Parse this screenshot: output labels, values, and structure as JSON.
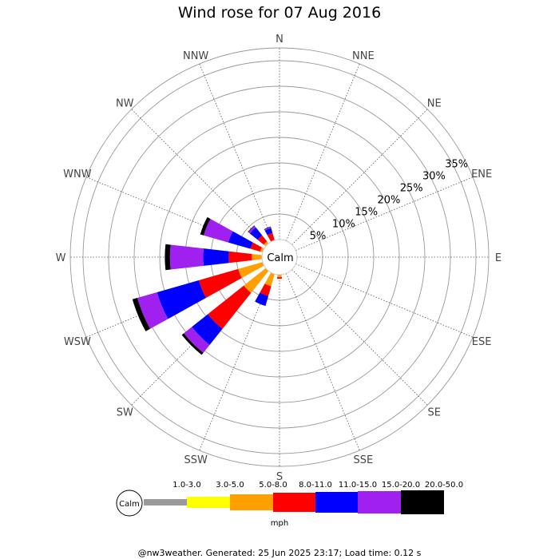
{
  "chart_data": {
    "type": "wind-rose",
    "title": "Wind rose for 07 Aug 2016",
    "directions": [
      "N",
      "NNE",
      "NE",
      "ENE",
      "E",
      "ESE",
      "SE",
      "SSE",
      "S",
      "SSW",
      "SW",
      "WSW",
      "W",
      "WNW",
      "NW",
      "NNW"
    ],
    "ring_labels": [
      "5%",
      "10%",
      "15%",
      "20%",
      "25%",
      "30%",
      "35%"
    ],
    "rmax_percent": 37.5,
    "calm_label": "Calm",
    "unit_label": "mph",
    "speed_bins": [
      {
        "label": "1.0-3.0",
        "color": "#999999"
      },
      {
        "label": "3.0-5.0",
        "color": "#ffff00"
      },
      {
        "label": "5.0-8.0",
        "color": "#ffa000"
      },
      {
        "label": "8.0-11.0",
        "color": "#ff0000"
      },
      {
        "label": "11.0-15.0",
        "color": "#0000ff"
      },
      {
        "label": "15.0-20.0",
        "color": "#a020f0"
      },
      {
        "label": "20.0-50.0",
        "color": "#000000"
      }
    ],
    "series": [
      {
        "direction": "N",
        "cumulative_percent": [
          0,
          0,
          0,
          0,
          0,
          0,
          0
        ]
      },
      {
        "direction": "NNE",
        "cumulative_percent": [
          0,
          0,
          0,
          0,
          0,
          0,
          0
        ]
      },
      {
        "direction": "NE",
        "cumulative_percent": [
          0,
          0,
          0,
          0,
          0,
          0,
          0
        ]
      },
      {
        "direction": "ENE",
        "cumulative_percent": [
          0,
          0,
          0,
          0,
          0,
          0,
          0
        ]
      },
      {
        "direction": "E",
        "cumulative_percent": [
          0,
          0,
          0,
          0,
          0,
          0,
          0
        ]
      },
      {
        "direction": "ESE",
        "cumulative_percent": [
          0,
          0,
          0,
          0,
          0,
          0,
          0
        ]
      },
      {
        "direction": "SE",
        "cumulative_percent": [
          0,
          0,
          0,
          0,
          0,
          0,
          0
        ]
      },
      {
        "direction": "SSE",
        "cumulative_percent": [
          0,
          0,
          0,
          0,
          0,
          0,
          0
        ]
      },
      {
        "direction": "S",
        "cumulative_percent": [
          0,
          0,
          0.5,
          0.8,
          0,
          0,
          0
        ]
      },
      {
        "direction": "SSW",
        "cumulative_percent": [
          0,
          0,
          2.5,
          4.5,
          6.5,
          0,
          0
        ]
      },
      {
        "direction": "SW",
        "cumulative_percent": [
          0,
          0,
          5.5,
          14.5,
          18.5,
          20.5,
          21.0
        ]
      },
      {
        "direction": "WSW",
        "cumulative_percent": [
          0,
          0,
          5.0,
          13.0,
          21.5,
          25.5,
          26.5
        ]
      },
      {
        "direction": "W",
        "cumulative_percent": [
          0,
          0,
          2.0,
          6.5,
          11.5,
          18.0,
          19.0
        ]
      },
      {
        "direction": "WNW",
        "cumulative_percent": [
          0,
          0,
          0.5,
          2.5,
          7.0,
          12.0,
          12.7
        ]
      },
      {
        "direction": "NW",
        "cumulative_percent": [
          0,
          0,
          0.5,
          2.0,
          4.0,
          4.4,
          4.5
        ]
      },
      {
        "direction": "NNW",
        "cumulative_percent": [
          0,
          0,
          0,
          1.5,
          2.5,
          2.7,
          2.8
        ]
      }
    ]
  },
  "footer": "@nw3weather. Generated: 25 Jun 2025 23:17; Load time: 0.12 s"
}
